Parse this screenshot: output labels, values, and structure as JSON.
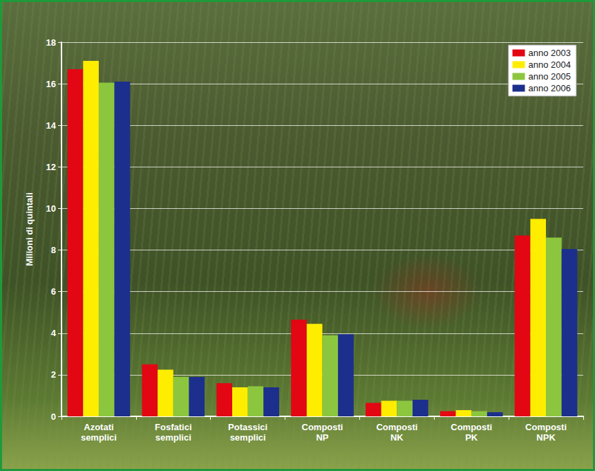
{
  "chart_data": {
    "type": "bar",
    "y_label": "Milioni di quintali",
    "categories": [
      "Azotati semplici",
      "Fosfatici semplici",
      "Potassici semplici",
      "Composti NP",
      "Composti NK",
      "Composti PK",
      "Composti NPK"
    ],
    "series": [
      {
        "name": "anno 2003",
        "color": "#e30613",
        "values": [
          16.7,
          2.5,
          1.6,
          4.65,
          0.65,
          0.25,
          8.7
        ]
      },
      {
        "name": "anno 2004",
        "color": "#ffed00",
        "values": [
          17.1,
          2.25,
          1.4,
          4.45,
          0.75,
          0.3,
          9.5
        ]
      },
      {
        "name": "anno 2005",
        "color": "#8cc63f",
        "values": [
          16.05,
          1.9,
          1.45,
          3.9,
          0.75,
          0.25,
          8.6
        ]
      },
      {
        "name": "anno 2006",
        "color": "#1d2f8c",
        "values": [
          16.1,
          1.9,
          1.4,
          3.95,
          0.8,
          0.2,
          8.05
        ]
      }
    ],
    "ylim": [
      0,
      18
    ],
    "yticks": [
      0,
      2,
      4,
      6,
      8,
      10,
      12,
      14,
      16,
      18
    ],
    "grid": true,
    "legend": "top-right"
  }
}
